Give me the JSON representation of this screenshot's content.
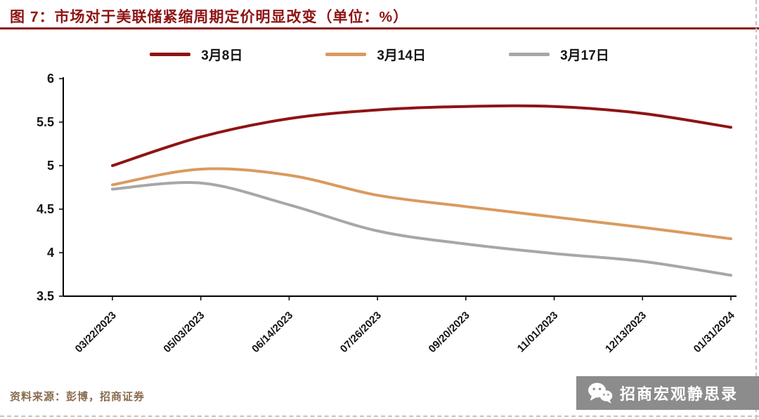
{
  "header": {
    "title": "图 7：市场对于美联储紧缩周期定价明显改变（单位：%）"
  },
  "chart_data": {
    "type": "line",
    "title": "市场对于美联储紧缩周期定价明显改变",
    "unit": "%",
    "x": [
      "03/22/2023",
      "05/03/2023",
      "06/14/2023",
      "07/26/2023",
      "09/20/2023",
      "11/01/2023",
      "12/13/2023",
      "01/31/2024"
    ],
    "series": [
      {
        "name": "3月8日",
        "color": "#8E1414",
        "values": [
          5.0,
          5.33,
          5.54,
          5.64,
          5.68,
          5.68,
          5.6,
          5.44
        ]
      },
      {
        "name": "3月14日",
        "color": "#DA9A5F",
        "values": [
          4.78,
          4.96,
          4.89,
          4.66,
          4.53,
          4.41,
          4.29,
          4.16
        ]
      },
      {
        "name": "3月17日",
        "color": "#A7A7A7",
        "values": [
          4.73,
          4.8,
          4.55,
          4.25,
          4.1,
          3.99,
          3.9,
          3.74
        ]
      }
    ],
    "ylim": [
      3.5,
      6
    ],
    "yticks": [
      "3.5",
      "4",
      "4.5",
      "5",
      "5.5",
      "6"
    ],
    "grid": false,
    "legend_position": "top"
  },
  "footer": {
    "source": "资料来源：彭博，招商证券"
  },
  "badge": {
    "label": "招商宏观静思录",
    "icon": "wechat-icon"
  },
  "colors": {
    "accent": "#8E1414",
    "orange": "#DA9A5F",
    "gray": "#A7A7A7",
    "source_text": "#8A6B4F",
    "badge_bg": "#8C8C8C",
    "axis": "#000000"
  }
}
